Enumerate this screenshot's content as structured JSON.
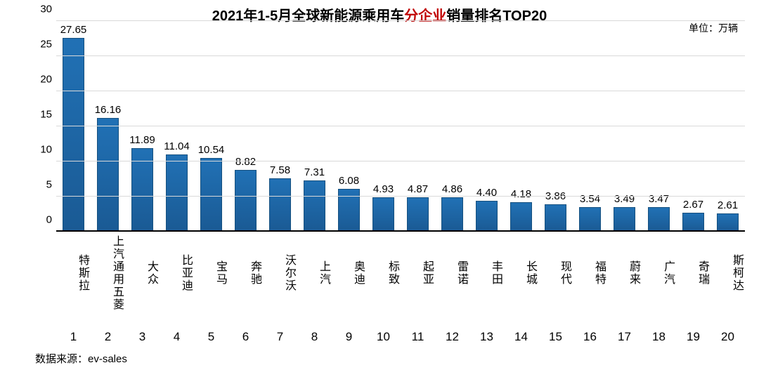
{
  "chart": {
    "type": "bar",
    "title_parts": {
      "prefix": "2021年1-5月全球新能源乘用车",
      "highlight": "分企业",
      "suffix": "销量排名TOP20"
    },
    "title_fontsize": 20,
    "title_color": "#000000",
    "title_highlight_color": "#c00000",
    "unit_label": "单位：万辆",
    "unit_fontsize": 14,
    "unit_color": "#000000",
    "source_label": "数据来源：ev-sales",
    "source_fontsize": 15,
    "source_color": "#000000",
    "background_color": "#ffffff",
    "bar_color": "#2171b5",
    "bar_width_pct": 64,
    "grid_color": "#d9d9d9",
    "axis_color": "#000000",
    "value_label_color": "#000000",
    "value_label_fontsize": 15,
    "xlabel_color": "#000000",
    "xlabel_fontsize": 16,
    "rank_color": "#000000",
    "rank_fontsize": 17,
    "ytick_color": "#000000",
    "ytick_fontsize": 15,
    "ylim": [
      0,
      30
    ],
    "yticks": [
      0,
      5,
      10,
      15,
      20,
      25,
      30
    ],
    "categories": [
      "特斯拉",
      "上汽通用五菱",
      "大众",
      "比亚迪",
      "宝马",
      "奔驰",
      "沃尔沃",
      "上汽",
      "奥迪",
      "标致",
      "起亚",
      "雷诺",
      "丰田",
      "长城",
      "现代",
      "福特",
      "蔚来",
      "广汽",
      "奇瑞",
      "斯柯达"
    ],
    "values": [
      27.65,
      16.16,
      11.89,
      11.04,
      10.54,
      8.82,
      7.58,
      7.31,
      6.08,
      4.93,
      4.87,
      4.86,
      4.4,
      4.18,
      3.86,
      3.54,
      3.49,
      3.47,
      2.67,
      2.61
    ],
    "value_labels": [
      "27.65",
      "16.16",
      "11.89",
      "11.04",
      "10.54",
      "8.82",
      "7.58",
      "7.31",
      "6.08",
      "4.93",
      "4.87",
      "4.86",
      "4.40",
      "4.18",
      "3.86",
      "3.54",
      "3.49",
      "3.47",
      "2.67",
      "2.61"
    ],
    "ranks": [
      "1",
      "2",
      "3",
      "4",
      "5",
      "6",
      "7",
      "8",
      "9",
      "10",
      "11",
      "12",
      "13",
      "14",
      "15",
      "16",
      "17",
      "18",
      "19",
      "20"
    ]
  }
}
